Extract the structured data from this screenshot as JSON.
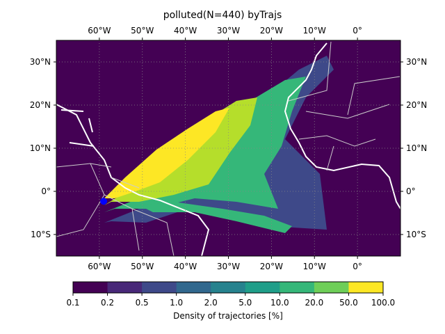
{
  "title": "polluted(N=440) byTrajs",
  "map": {
    "lon_min": -70,
    "lon_max": 10,
    "lat_min": -15,
    "lat_max": 35,
    "lon_ticks": [
      {
        "lon": -60,
        "label": "60°W"
      },
      {
        "lon": -50,
        "label": "50°W"
      },
      {
        "lon": -40,
        "label": "40°W"
      },
      {
        "lon": -30,
        "label": "30°W"
      },
      {
        "lon": -20,
        "label": "20°W"
      },
      {
        "lon": -10,
        "label": "10°W"
      },
      {
        "lon": 0,
        "label": "0°"
      }
    ],
    "lat_ticks": [
      {
        "lat": 30,
        "label": "30°N"
      },
      {
        "lat": 20,
        "label": "20°N"
      },
      {
        "lat": 10,
        "label": "10°N"
      },
      {
        "lat": 0,
        "label": "0°"
      },
      {
        "lat": -10,
        "label": "10°S"
      }
    ],
    "grid": true,
    "source_point": {
      "lon": -59,
      "lat": -2.3,
      "color": "#0000ff"
    }
  },
  "colorbar": {
    "ticks": [
      "0.1",
      "0.2",
      "0.5",
      "1.0",
      "2.0",
      "5.0",
      "10.0",
      "20.0",
      "50.0",
      "100.0"
    ],
    "colors": [
      "#440154",
      "#482878",
      "#3e4989",
      "#31688e",
      "#26828e",
      "#1f9e89",
      "#35b779",
      "#6ece58",
      "#b5de2b",
      "#fde725"
    ],
    "label": "Density of trajectories [%]"
  }
}
